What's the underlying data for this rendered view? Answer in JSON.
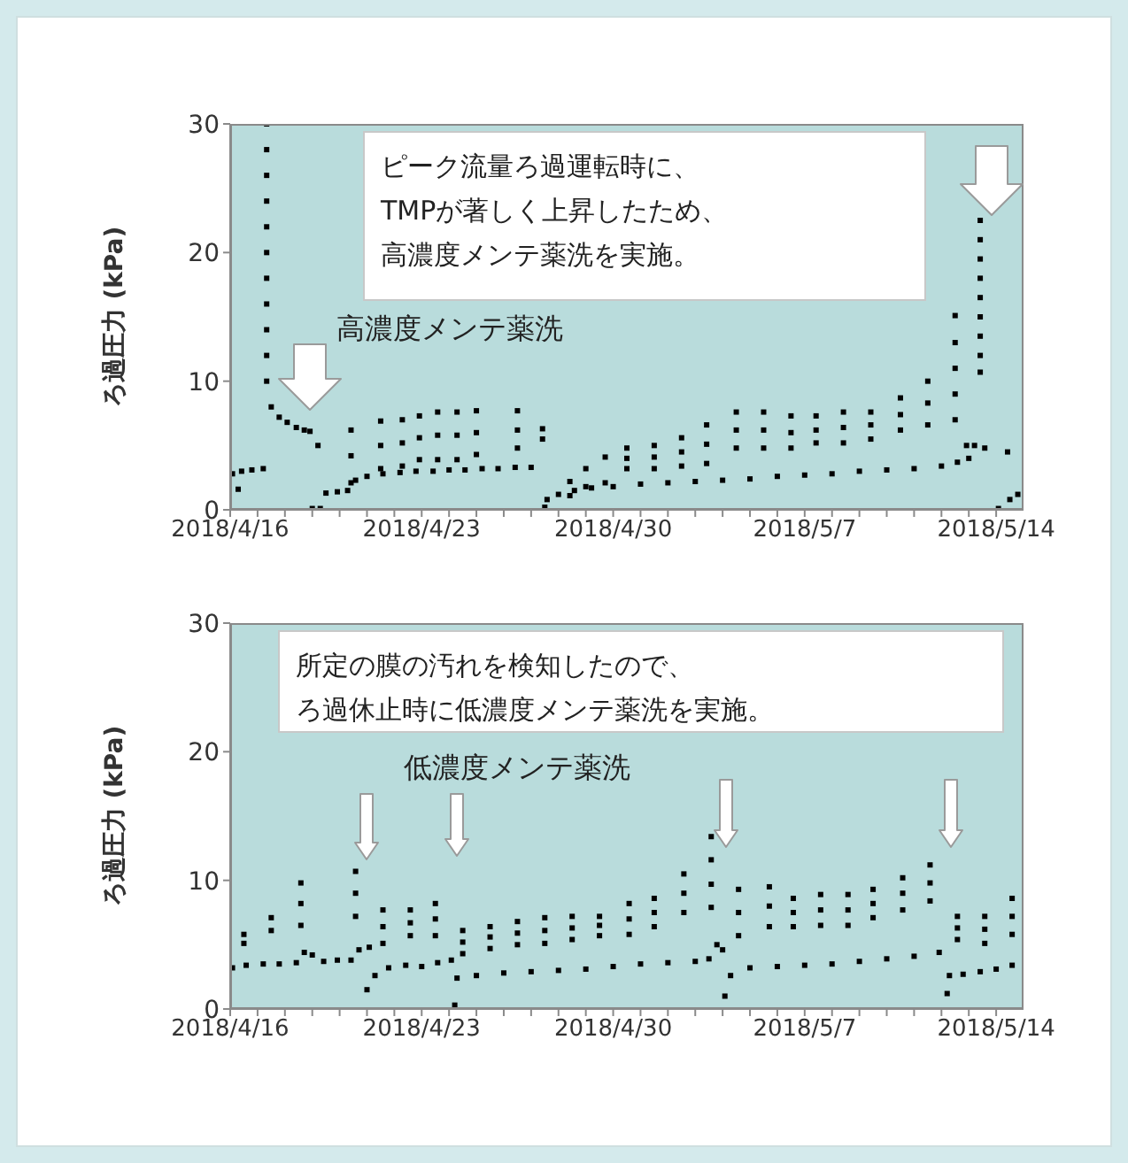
{
  "chart_data": [
    {
      "type": "scatter",
      "ylabel": "ろ過圧力 (kPa)",
      "color": "#000000",
      "marker": "square",
      "annotations": [
        "ピーク流量ろ過運転時に、TMPが著しく上昇したため、高濃度メンテ薬洗を実施。",
        "高濃度メンテ薬洗"
      ],
      "xlim": [
        "2018-04-16",
        "2018-05-15"
      ],
      "ylim": [
        0,
        30
      ],
      "yticks": [
        0,
        10,
        20,
        30
      ],
      "xticks": [
        {
          "value": "2018-04-16",
          "label": "2018/4/16"
        },
        {
          "value": "2018-04-17",
          "label": null
        },
        {
          "value": "2018-04-18",
          "label": null
        },
        {
          "value": "2018-04-19",
          "label": null
        },
        {
          "value": "2018-04-20",
          "label": null
        },
        {
          "value": "2018-04-21",
          "label": null
        },
        {
          "value": "2018-04-22",
          "label": null
        },
        {
          "value": "2018-04-23",
          "label": "2018/4/23"
        },
        {
          "value": "2018-04-24",
          "label": null
        },
        {
          "value": "2018-04-25",
          "label": null
        },
        {
          "value": "2018-04-26",
          "label": null
        },
        {
          "value": "2018-04-27",
          "label": null
        },
        {
          "value": "2018-04-28",
          "label": null
        },
        {
          "value": "2018-04-29",
          "label": null
        },
        {
          "value": "2018-04-30",
          "label": "2018/4/30"
        },
        {
          "value": "2018-05-01",
          "label": null
        },
        {
          "value": "2018-05-02",
          "label": null
        },
        {
          "value": "2018-05-03",
          "label": null
        },
        {
          "value": "2018-05-04",
          "label": null
        },
        {
          "value": "2018-05-05",
          "label": null
        },
        {
          "value": "2018-05-06",
          "label": null
        },
        {
          "value": "2018-05-07",
          "label": "2018/5/7"
        },
        {
          "value": "2018-05-08",
          "label": null
        },
        {
          "value": "2018-05-09",
          "label": null
        },
        {
          "value": "2018-05-10",
          "label": null
        },
        {
          "value": "2018-05-11",
          "label": null
        },
        {
          "value": "2018-05-12",
          "label": null
        },
        {
          "value": "2018-05-13",
          "label": null
        },
        {
          "value": "2018-05-14",
          "label": "2018/5/14"
        }
      ],
      "x": [
        "2018-04-16T02:00",
        "2018-04-16T07:00",
        "2018-04-16T10:00",
        "2018-04-16T19:00",
        "2018-04-17T05:00",
        "2018-04-17T08:00",
        "2018-04-17T08:00",
        "2018-04-17T08:00",
        "2018-04-17T08:00",
        "2018-04-17T08:00",
        "2018-04-17T08:00",
        "2018-04-17T08:00",
        "2018-04-17T08:00",
        "2018-04-17T08:00",
        "2018-04-17T08:00",
        "2018-04-17T08:00",
        "2018-04-17T12:00",
        "2018-04-17T19:00",
        "2018-04-18T02:00",
        "2018-04-18T10:00",
        "2018-04-18T17:00",
        "2018-04-18T22:00",
        "2018-04-19T05:00",
        "2018-04-19T00:00",
        "2018-04-19T07:00",
        "2018-04-19T12:00",
        "2018-04-19T22:00",
        "2018-04-20T07:00",
        "2018-04-20T14:00",
        "2018-04-21T00:00",
        "2018-04-21T14:00",
        "2018-04-22T05:00",
        "2018-04-22T19:00",
        "2018-04-23T10:00",
        "2018-04-24T00:00",
        "2018-04-24T14:00",
        "2018-04-25T05:00",
        "2018-04-25T19:00",
        "2018-04-26T10:00",
        "2018-04-27T00:00",
        "2018-04-20T10:00",
        "2018-04-20T10:00",
        "2018-04-20T10:00",
        "2018-04-21T12:00",
        "2018-04-21T12:00",
        "2018-04-21T12:00",
        "2018-04-22T07:00",
        "2018-04-22T07:00",
        "2018-04-22T07:00",
        "2018-04-22T22:00",
        "2018-04-22T22:00",
        "2018-04-22T22:00",
        "2018-04-23T14:00",
        "2018-04-23T14:00",
        "2018-04-23T14:00",
        "2018-04-24T07:00",
        "2018-04-24T07:00",
        "2018-04-24T07:00",
        "2018-04-25T00:00",
        "2018-04-25T00:00",
        "2018-04-25T00:00",
        "2018-04-26T12:00",
        "2018-04-26T12:00",
        "2018-04-26T12:00",
        "2018-04-27T10:00",
        "2018-04-27T10:00",
        "2018-04-27T12:00",
        "2018-04-27T14:00",
        "2018-04-28T00:00",
        "2018-04-28T14:00",
        "2018-04-29T05:00",
        "2018-04-30T00:00",
        "2018-05-01T00:00",
        "2018-05-02T00:00",
        "2018-05-03T00:00",
        "2018-05-04T00:00",
        "2018-05-05T00:00",
        "2018-05-06T00:00",
        "2018-05-07T00:00",
        "2018-05-08T00:00",
        "2018-05-09T00:00",
        "2018-05-10T00:00",
        "2018-05-11T00:00",
        "2018-05-12T00:00",
        "2018-05-12T14:00",
        "2018-05-13T00:00",
        "2018-04-28T10:00",
        "2018-04-28T10:00",
        "2018-04-29T00:00",
        "2018-04-29T00:00",
        "2018-04-29T17:00",
        "2018-04-29T17:00",
        "2018-04-30T12:00",
        "2018-04-30T12:00",
        "2018-04-30T12:00",
        "2018-05-01T12:00",
        "2018-05-01T12:00",
        "2018-05-01T12:00",
        "2018-05-02T12:00",
        "2018-05-02T12:00",
        "2018-05-02T12:00",
        "2018-05-03T10:00",
        "2018-05-03T10:00",
        "2018-05-03T10:00",
        "2018-05-04T12:00",
        "2018-05-04T12:00",
        "2018-05-04T12:00",
        "2018-05-05T12:00",
        "2018-05-05T12:00",
        "2018-05-05T12:00",
        "2018-05-06T12:00",
        "2018-05-06T12:00",
        "2018-05-06T12:00",
        "2018-05-07T10:00",
        "2018-05-07T10:00",
        "2018-05-07T10:00",
        "2018-05-08T10:00",
        "2018-05-08T10:00",
        "2018-05-08T10:00",
        "2018-05-09T10:00",
        "2018-05-09T10:00",
        "2018-05-09T10:00",
        "2018-05-10T12:00",
        "2018-05-10T12:00",
        "2018-05-10T12:00",
        "2018-05-11T12:00",
        "2018-05-11T12:00",
        "2018-05-11T12:00",
        "2018-05-12T12:00",
        "2018-05-12T12:00",
        "2018-05-12T12:00",
        "2018-05-12T12:00",
        "2018-05-12T12:00",
        "2018-05-12T22:00",
        "2018-05-13T05:00",
        "2018-05-13T14:00",
        "2018-05-14T10:00",
        "2018-05-14T02:00",
        "2018-05-14T12:00",
        "2018-05-14T19:00",
        "2018-05-13T10:00",
        "2018-05-13T10:00",
        "2018-05-13T10:00",
        "2018-05-13T10:00",
        "2018-05-13T10:00",
        "2018-05-13T10:00",
        "2018-05-13T10:00",
        "2018-05-13T10:00",
        "2018-05-13T10:00"
      ],
      "values": [
        2.8,
        1.6,
        3.0,
        3.1,
        3.2,
        30,
        28,
        26,
        24,
        22,
        20,
        18,
        16,
        14,
        12,
        10,
        8.0,
        7.2,
        6.8,
        6.4,
        6.2,
        6.1,
        5.0,
        0.1,
        0.1,
        1.3,
        1.4,
        1.5,
        2.3,
        2.6,
        2.8,
        2.9,
        3.0,
        3.0,
        3.1,
        3.1,
        3.2,
        3.2,
        3.3,
        3.3,
        2.1,
        4.2,
        6.2,
        3.2,
        5.0,
        6.9,
        3.4,
        5.2,
        7.0,
        3.9,
        5.6,
        7.3,
        3.9,
        5.8,
        7.6,
        3.9,
        5.8,
        7.6,
        4.3,
        6.0,
        7.7,
        4.8,
        6.2,
        7.7,
        5.5,
        6.3,
        0.2,
        0.8,
        1.2,
        1.5,
        1.7,
        1.8,
        2.0,
        2.1,
        2.2,
        2.3,
        2.4,
        2.6,
        2.7,
        2.8,
        3.0,
        3.1,
        3.2,
        3.4,
        3.7,
        4.0,
        1.1,
        2.2,
        1.8,
        3.2,
        2.1,
        4.1,
        3.2,
        4.0,
        4.8,
        3.2,
        4.1,
        5.0,
        3.4,
        4.5,
        5.6,
        3.6,
        5.1,
        6.6,
        4.8,
        6.2,
        7.6,
        4.8,
        6.2,
        7.6,
        4.8,
        6.0,
        7.3,
        5.2,
        6.2,
        7.3,
        5.2,
        6.4,
        7.6,
        5.5,
        6.6,
        7.6,
        6.2,
        7.4,
        8.7,
        6.6,
        8.3,
        10.0,
        7.0,
        9.0,
        11.0,
        13.0,
        15.1,
        5.0,
        5.0,
        4.8,
        4.5,
        0.1,
        0.8,
        1.2,
        22.5,
        21,
        19.5,
        18,
        16.5,
        15,
        13.5,
        12,
        10.7
      ]
    },
    {
      "type": "scatter",
      "ylabel": "ろ過圧力 (kPa)",
      "color": "#000000",
      "marker": "square",
      "annotations": [
        "所定の膜の汚れを検知したので、ろ過休止時に低濃度メンテ薬洗を実施。",
        "低濃度メンテ薬洗"
      ],
      "xlim": [
        "2018-04-16",
        "2018-05-15"
      ],
      "ylim": [
        0,
        30
      ],
      "yticks": [
        0,
        10,
        20,
        30
      ],
      "xticks": [
        {
          "value": "2018-04-16",
          "label": "2018/4/16"
        },
        {
          "value": "2018-04-17",
          "label": null
        },
        {
          "value": "2018-04-18",
          "label": null
        },
        {
          "value": "2018-04-19",
          "label": null
        },
        {
          "value": "2018-04-20",
          "label": null
        },
        {
          "value": "2018-04-21",
          "label": null
        },
        {
          "value": "2018-04-22",
          "label": null
        },
        {
          "value": "2018-04-23",
          "label": "2018/4/23"
        },
        {
          "value": "2018-04-24",
          "label": null
        },
        {
          "value": "2018-04-25",
          "label": null
        },
        {
          "value": "2018-04-26",
          "label": null
        },
        {
          "value": "2018-04-27",
          "label": null
        },
        {
          "value": "2018-04-28",
          "label": null
        },
        {
          "value": "2018-04-29",
          "label": null
        },
        {
          "value": "2018-04-30",
          "label": "2018/4/30"
        },
        {
          "value": "2018-05-01",
          "label": null
        },
        {
          "value": "2018-05-02",
          "label": null
        },
        {
          "value": "2018-05-03",
          "label": null
        },
        {
          "value": "2018-05-04",
          "label": null
        },
        {
          "value": "2018-05-05",
          "label": null
        },
        {
          "value": "2018-05-06",
          "label": null
        },
        {
          "value": "2018-05-07",
          "label": "2018/5/7"
        },
        {
          "value": "2018-05-08",
          "label": null
        },
        {
          "value": "2018-05-09",
          "label": null
        },
        {
          "value": "2018-05-10",
          "label": null
        },
        {
          "value": "2018-05-11",
          "label": null
        },
        {
          "value": "2018-05-12",
          "label": null
        },
        {
          "value": "2018-05-13",
          "label": null
        },
        {
          "value": "2018-05-14",
          "label": "2018/5/14"
        }
      ],
      "x": [
        "2018-04-16T02:00",
        "2018-04-16T14:00",
        "2018-04-17T05:00",
        "2018-04-17T19:00",
        "2018-04-18T10:00",
        "2018-04-18T17:00",
        "2018-04-19T00:00",
        "2018-04-19T10:00",
        "2018-04-19T22:00",
        "2018-04-20T10:00",
        "2018-04-20T17:00",
        "2018-04-21T02:00",
        "2018-04-21T00:00",
        "2018-04-21T07:00",
        "2018-04-21T19:00",
        "2018-04-22T10:00",
        "2018-04-23T00:00",
        "2018-04-23T14:00",
        "2018-04-24T02:00",
        "2018-04-24T05:00",
        "2018-04-24T07:00",
        "2018-04-25T00:00",
        "2018-04-26T00:00",
        "2018-04-27T00:00",
        "2018-04-28T00:00",
        "2018-04-29T00:00",
        "2018-04-30T00:00",
        "2018-05-01T00:00",
        "2018-05-02T00:00",
        "2018-05-03T00:00",
        "2018-05-03T12:00",
        "2018-05-03T19:00",
        "2018-05-04T00:00",
        "2018-05-04T02:00",
        "2018-05-04T07:00",
        "2018-05-05T00:00",
        "2018-05-06T00:00",
        "2018-05-07T00:00",
        "2018-05-08T00:00",
        "2018-05-09T00:00",
        "2018-05-10T00:00",
        "2018-05-11T00:00",
        "2018-05-11T22:00",
        "2018-05-12T05:00",
        "2018-05-12T07:00",
        "2018-05-12T19:00",
        "2018-05-13T10:00",
        "2018-05-14T00:00",
        "2018-05-14T14:00",
        "2018-04-16T12:00",
        "2018-04-16T12:00",
        "2018-04-17T12:00",
        "2018-04-17T12:00",
        "2018-04-18T14:00",
        "2018-04-18T14:00",
        "2018-04-18T14:00",
        "2018-04-20T14:00",
        "2018-04-20T14:00",
        "2018-04-20T14:00",
        "2018-04-21T14:00",
        "2018-04-21T14:00",
        "2018-04-21T14:00",
        "2018-04-22T14:00",
        "2018-04-22T14:00",
        "2018-04-22T14:00",
        "2018-04-23T12:00",
        "2018-04-23T12:00",
        "2018-04-23T12:00",
        "2018-04-24T12:00",
        "2018-04-24T12:00",
        "2018-04-24T12:00",
        "2018-04-25T12:00",
        "2018-04-25T12:00",
        "2018-04-25T12:00",
        "2018-04-26T12:00",
        "2018-04-26T12:00",
        "2018-04-26T12:00",
        "2018-04-27T12:00",
        "2018-04-27T12:00",
        "2018-04-27T12:00",
        "2018-04-28T12:00",
        "2018-04-28T12:00",
        "2018-04-28T12:00",
        "2018-04-29T12:00",
        "2018-04-29T12:00",
        "2018-04-29T12:00",
        "2018-04-30T14:00",
        "2018-04-30T14:00",
        "2018-04-30T14:00",
        "2018-05-01T12:00",
        "2018-05-01T12:00",
        "2018-05-01T12:00",
        "2018-05-02T14:00",
        "2018-05-02T14:00",
        "2018-05-02T14:00",
        "2018-05-03T14:00",
        "2018-05-03T14:00",
        "2018-05-03T14:00",
        "2018-05-03T14:00",
        "2018-05-04T14:00",
        "2018-05-04T14:00",
        "2018-05-04T14:00",
        "2018-05-05T17:00",
        "2018-05-05T17:00",
        "2018-05-05T17:00",
        "2018-05-06T14:00",
        "2018-05-06T14:00",
        "2018-05-06T14:00",
        "2018-05-07T14:00",
        "2018-05-07T14:00",
        "2018-05-07T14:00",
        "2018-05-08T14:00",
        "2018-05-08T14:00",
        "2018-05-08T14:00",
        "2018-05-09T12:00",
        "2018-05-09T12:00",
        "2018-05-09T12:00",
        "2018-05-10T14:00",
        "2018-05-10T14:00",
        "2018-05-10T14:00",
        "2018-05-11T14:00",
        "2018-05-11T14:00",
        "2018-05-11T14:00",
        "2018-05-12T14:00",
        "2018-05-12T14:00",
        "2018-05-12T14:00",
        "2018-05-13T14:00",
        "2018-05-13T14:00",
        "2018-05-13T14:00",
        "2018-05-14T14:00",
        "2018-05-14T14:00",
        "2018-05-14T14:00"
      ],
      "values": [
        3.2,
        3.4,
        3.5,
        3.5,
        3.6,
        4.4,
        4.2,
        3.7,
        3.8,
        3.8,
        4.6,
        4.8,
        1.5,
        2.6,
        3.2,
        3.4,
        3.3,
        3.6,
        3.8,
        0.3,
        2.4,
        2.6,
        2.8,
        2.9,
        3.0,
        3.1,
        3.3,
        3.5,
        3.6,
        3.7,
        3.9,
        5.0,
        4.6,
        1.0,
        2.6,
        3.2,
        3.3,
        3.4,
        3.5,
        3.7,
        3.9,
        4.1,
        4.4,
        1.2,
        2.6,
        2.7,
        2.9,
        3.1,
        3.4,
        5.1,
        5.8,
        6.1,
        7.1,
        6.5,
        8.2,
        9.8,
        7.2,
        9.0,
        10.7,
        5.1,
        6.4,
        7.7,
        5.7,
        6.7,
        7.7,
        5.7,
        7.0,
        8.2,
        4.3,
        5.2,
        6.1,
        4.7,
        5.6,
        6.4,
        5.0,
        5.9,
        6.8,
        5.1,
        6.1,
        7.1,
        5.4,
        6.3,
        7.2,
        5.7,
        6.5,
        7.2,
        5.8,
        7.0,
        8.2,
        6.4,
        7.5,
        8.6,
        7.5,
        9.0,
        10.5,
        7.9,
        9.7,
        11.6,
        13.4,
        5.7,
        7.5,
        9.3,
        6.4,
        8.0,
        9.5,
        6.4,
        7.5,
        8.6,
        6.5,
        7.7,
        8.9,
        6.5,
        7.7,
        8.9,
        7.1,
        8.2,
        9.3,
        7.7,
        9.0,
        10.2,
        8.4,
        9.8,
        11.2,
        5.4,
        6.3,
        7.2,
        5.1,
        6.2,
        7.2,
        5.8,
        7.2,
        8.6
      ]
    }
  ]
}
